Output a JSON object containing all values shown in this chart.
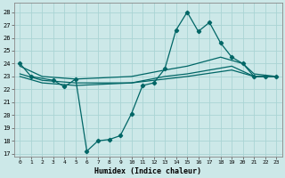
{
  "xlabel": "Humidex (Indice chaleur)",
  "background_color": "#cce8e8",
  "grid_color": "#aad4d4",
  "line_color": "#006666",
  "xlim": [
    -0.5,
    23.5
  ],
  "ylim": [
    16.8,
    28.7
  ],
  "xticks": [
    0,
    1,
    2,
    3,
    4,
    5,
    6,
    7,
    8,
    9,
    10,
    11,
    12,
    13,
    14,
    15,
    16,
    17,
    18,
    19,
    20,
    21,
    22,
    23
  ],
  "yticks": [
    17,
    18,
    19,
    20,
    21,
    22,
    23,
    24,
    25,
    26,
    27,
    28
  ],
  "curve_main_x": [
    0,
    1,
    3,
    4,
    5,
    6,
    7,
    8,
    9,
    10,
    11,
    12,
    13,
    14,
    15,
    16,
    17,
    18,
    19,
    20,
    21,
    22,
    23
  ],
  "curve_main_y": [
    24,
    23,
    22.7,
    22.2,
    22.8,
    17.2,
    18.0,
    18.1,
    18.4,
    20.1,
    22.3,
    22.5,
    23.6,
    26.6,
    28.0,
    26.5,
    27.2,
    25.6,
    24.5,
    24.0,
    23.0,
    23.0,
    23.0
  ],
  "curve2_x": [
    0,
    2,
    5,
    10,
    13,
    15,
    18,
    20,
    21,
    23
  ],
  "curve2_y": [
    23.8,
    23.0,
    22.8,
    23.0,
    23.5,
    23.8,
    24.5,
    24.0,
    23.2,
    23.0
  ],
  "curve3_x": [
    0,
    2,
    5,
    10,
    13,
    15,
    19,
    21,
    23
  ],
  "curve3_y": [
    23.2,
    22.7,
    22.5,
    22.5,
    23.0,
    23.2,
    23.8,
    23.0,
    23.0
  ],
  "curve4_x": [
    0,
    2,
    5,
    10,
    13,
    15,
    19,
    21,
    23
  ],
  "curve4_y": [
    23.0,
    22.5,
    22.3,
    22.5,
    22.8,
    23.0,
    23.5,
    23.0,
    23.0
  ]
}
